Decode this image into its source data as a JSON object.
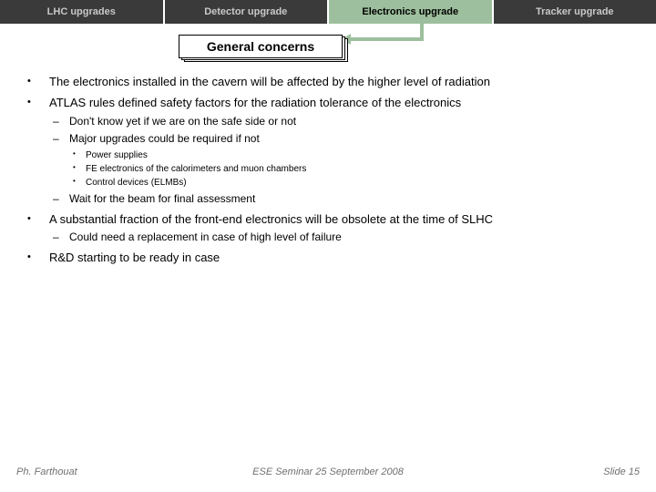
{
  "tabs": [
    {
      "label": "LHC upgrades",
      "active": false
    },
    {
      "label": "Detector upgrade",
      "active": false
    },
    {
      "label": "Electronics upgrade",
      "active": true
    },
    {
      "label": "Tracker upgrade",
      "active": false
    }
  ],
  "title": "General concerns",
  "bullets": {
    "b1": "The electronics installed in the cavern will be affected by the higher level of radiation",
    "b2": "ATLAS rules defined safety factors for the radiation tolerance of the electronics",
    "b2_1": "Don't know yet if we are on the safe side or not",
    "b2_2": "Major upgrades could be required if not",
    "b2_2_1": "Power supplies",
    "b2_2_2": "FE electronics of the calorimeters and muon chambers",
    "b2_2_3": "Control devices (ELMBs)",
    "b2_3": "Wait for the beam for final assessment",
    "b3": "A substantial fraction of the front-end electronics will be obsolete at the time of SLHC",
    "b3_1": "Could need a replacement in case of high level of failure",
    "b4": "R&D starting to be ready in case"
  },
  "footer": {
    "left": "Ph. Farthouat",
    "center": "ESE Seminar 25 September 2008",
    "right": "Slide 15"
  },
  "colors": {
    "tab_bg": "#3a3a3a",
    "tab_fg": "#c8c8c8",
    "active_bg": "#9dbf9d",
    "active_fg": "#000000",
    "footer_fg": "#707070"
  }
}
